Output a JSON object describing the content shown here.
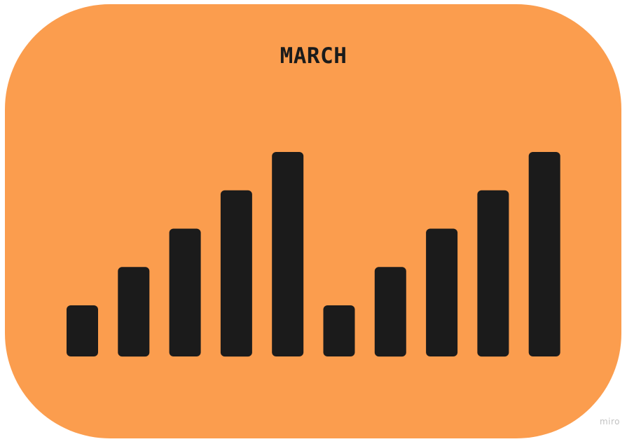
{
  "app": {
    "watermark": "miro"
  },
  "colors": {
    "card_background": "#fb9d4e",
    "bar": "#1b1b1b",
    "title": "#1b1b1b"
  },
  "chart_data": {
    "type": "bar",
    "title": "MARCH",
    "xlabel": "",
    "ylabel": "",
    "axes_visible": false,
    "grid": false,
    "ylim": [
      0,
      4
    ],
    "values": [
      1,
      1.75,
      2.5,
      3.25,
      4,
      1,
      1.75,
      2.5,
      3.25,
      4
    ]
  }
}
